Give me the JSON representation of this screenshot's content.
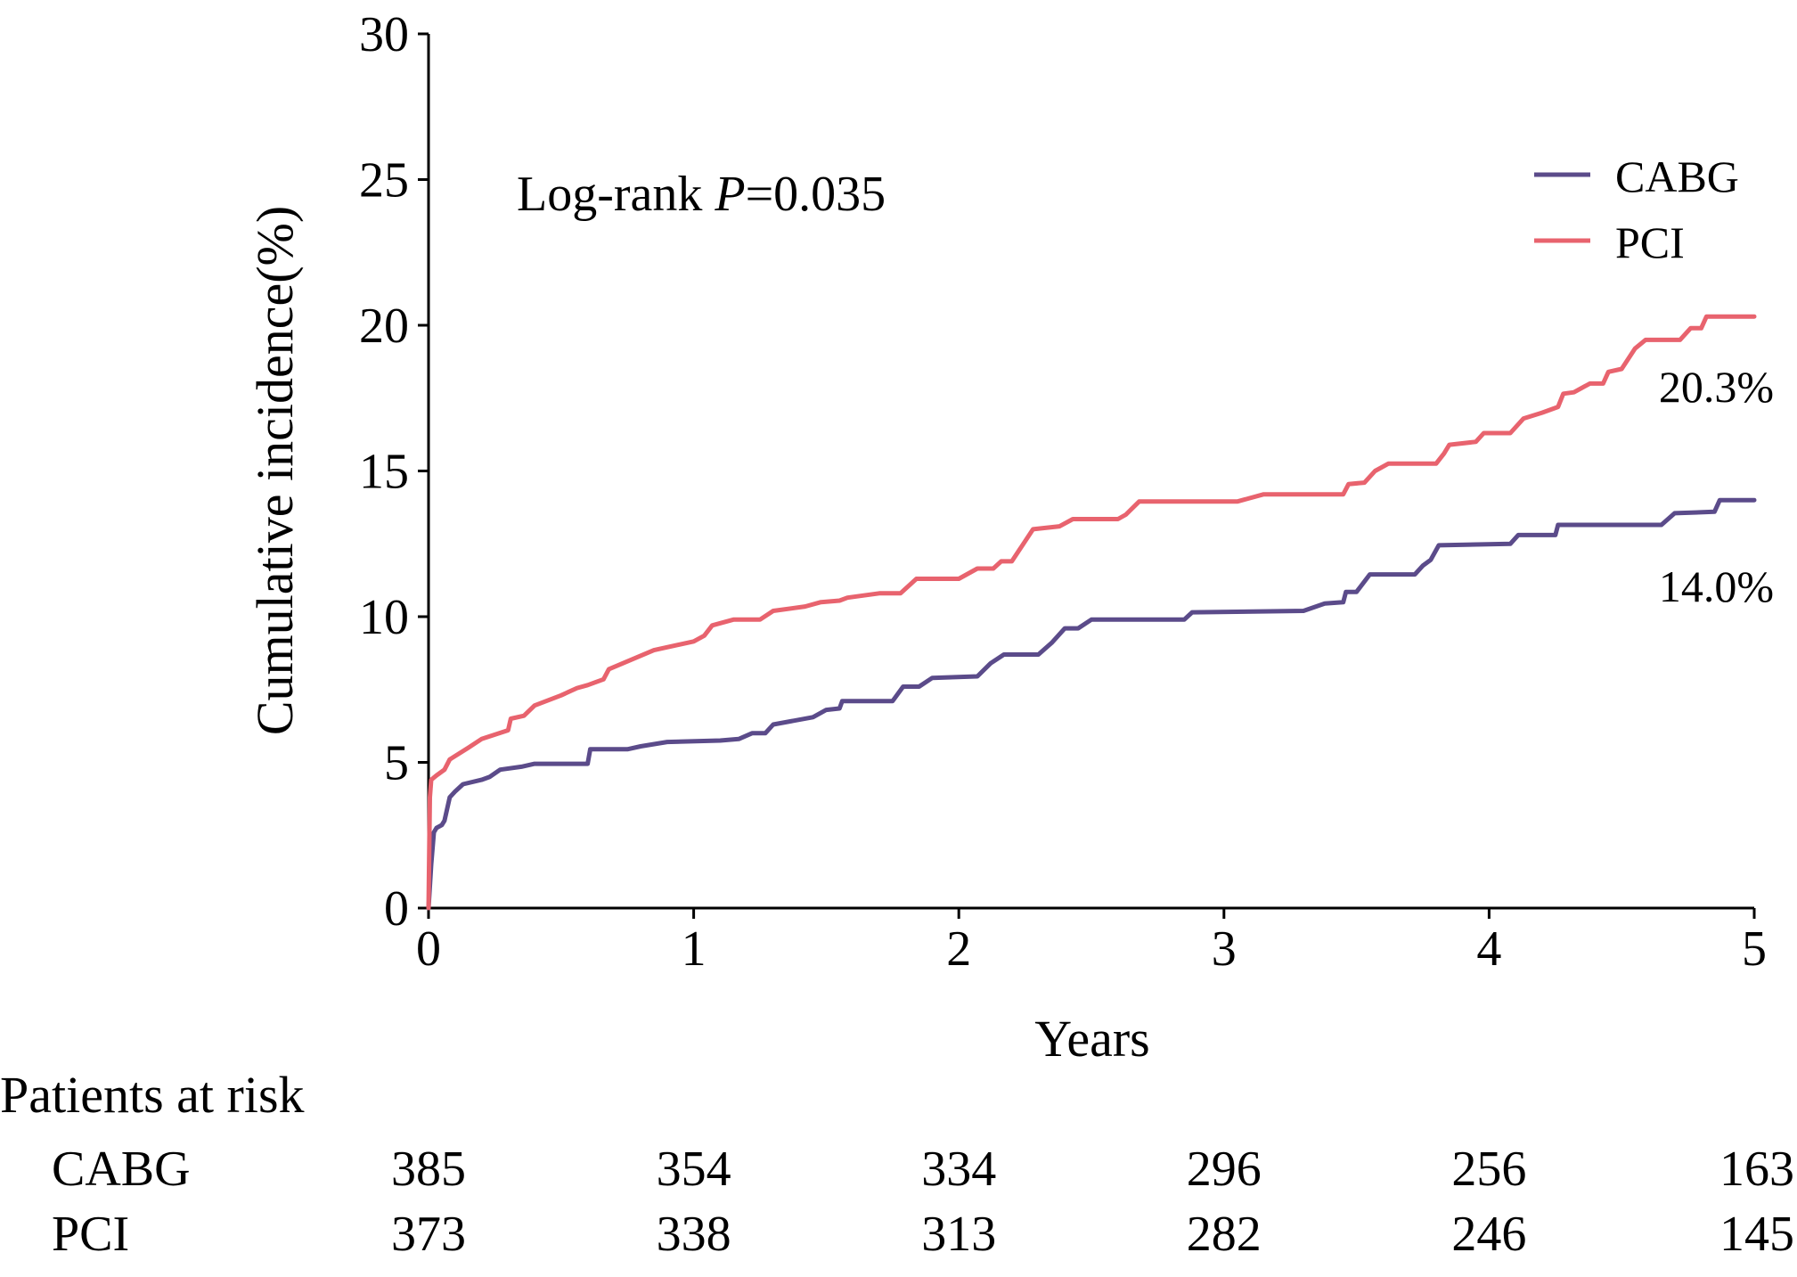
{
  "chart_data": {
    "type": "line",
    "xlabel": "Years",
    "ylabel": "Cumulative incidence(%)",
    "xlim": [
      0,
      5
    ],
    "ylim": [
      0,
      30
    ],
    "x_ticks": [
      0,
      1,
      2,
      3,
      4,
      5
    ],
    "y_ticks": [
      0,
      5,
      10,
      15,
      20,
      25,
      30
    ],
    "x_tick_labels": [
      "0",
      "1",
      "2",
      "3",
      "4",
      "5"
    ],
    "y_tick_labels": [
      "0",
      "5",
      "10",
      "15",
      "20",
      "25",
      "30"
    ],
    "grid": false,
    "legend_position": "top-right",
    "annotation": {
      "prefix": "Log-rank ",
      "italic": "P",
      "suffix": "=0.035"
    },
    "series": [
      {
        "name": "CABG",
        "color": "#5b4b8a",
        "end_label": "14.0%",
        "points": [
          [
            0,
            0
          ],
          [
            0.01,
            1.5
          ],
          [
            0.02,
            2.6
          ],
          [
            0.03,
            2.75
          ],
          [
            0.05,
            2.85
          ],
          [
            0.06,
            3.0
          ],
          [
            0.08,
            3.8
          ],
          [
            0.1,
            4.0
          ],
          [
            0.13,
            4.25
          ],
          [
            0.2,
            4.4
          ],
          [
            0.23,
            4.5
          ],
          [
            0.27,
            4.75
          ],
          [
            0.35,
            4.85
          ],
          [
            0.4,
            4.95
          ],
          [
            0.6,
            4.95
          ],
          [
            0.61,
            5.45
          ],
          [
            0.75,
            5.45
          ],
          [
            0.8,
            5.55
          ],
          [
            0.9,
            5.7
          ],
          [
            1.1,
            5.75
          ],
          [
            1.17,
            5.8
          ],
          [
            1.22,
            6.0
          ],
          [
            1.27,
            6.0
          ],
          [
            1.3,
            6.3
          ],
          [
            1.45,
            6.55
          ],
          [
            1.5,
            6.8
          ],
          [
            1.55,
            6.85
          ],
          [
            1.56,
            7.1
          ],
          [
            1.75,
            7.1
          ],
          [
            1.79,
            7.6
          ],
          [
            1.85,
            7.6
          ],
          [
            1.9,
            7.9
          ],
          [
            2.07,
            7.95
          ],
          [
            2.12,
            8.4
          ],
          [
            2.17,
            8.7
          ],
          [
            2.3,
            8.7
          ],
          [
            2.35,
            9.1
          ],
          [
            2.4,
            9.6
          ],
          [
            2.45,
            9.6
          ],
          [
            2.5,
            9.9
          ],
          [
            2.85,
            9.9
          ],
          [
            2.88,
            10.15
          ],
          [
            3.3,
            10.2
          ],
          [
            3.38,
            10.45
          ],
          [
            3.45,
            10.5
          ],
          [
            3.46,
            10.85
          ],
          [
            3.5,
            10.85
          ],
          [
            3.55,
            11.45
          ],
          [
            3.72,
            11.45
          ],
          [
            3.75,
            11.75
          ],
          [
            3.78,
            11.95
          ],
          [
            3.81,
            12.45
          ],
          [
            4.08,
            12.5
          ],
          [
            4.11,
            12.8
          ],
          [
            4.25,
            12.8
          ],
          [
            4.26,
            13.15
          ],
          [
            4.65,
            13.15
          ],
          [
            4.7,
            13.55
          ],
          [
            4.85,
            13.6
          ],
          [
            4.87,
            14.0
          ],
          [
            5.0,
            14.0
          ]
        ]
      },
      {
        "name": "PCI",
        "color": "#e8636e",
        "end_label": "20.3%",
        "points": [
          [
            0,
            0
          ],
          [
            0.005,
            3.8
          ],
          [
            0.01,
            4.4
          ],
          [
            0.03,
            4.55
          ],
          [
            0.06,
            4.75
          ],
          [
            0.08,
            5.1
          ],
          [
            0.15,
            5.5
          ],
          [
            0.2,
            5.8
          ],
          [
            0.3,
            6.1
          ],
          [
            0.31,
            6.5
          ],
          [
            0.36,
            6.6
          ],
          [
            0.4,
            6.95
          ],
          [
            0.5,
            7.3
          ],
          [
            0.56,
            7.55
          ],
          [
            0.6,
            7.65
          ],
          [
            0.66,
            7.85
          ],
          [
            0.68,
            8.2
          ],
          [
            0.85,
            8.85
          ],
          [
            1.0,
            9.15
          ],
          [
            1.04,
            9.35
          ],
          [
            1.07,
            9.7
          ],
          [
            1.15,
            9.9
          ],
          [
            1.25,
            9.9
          ],
          [
            1.3,
            10.2
          ],
          [
            1.42,
            10.35
          ],
          [
            1.48,
            10.5
          ],
          [
            1.55,
            10.55
          ],
          [
            1.58,
            10.65
          ],
          [
            1.7,
            10.8
          ],
          [
            1.78,
            10.8
          ],
          [
            1.84,
            11.3
          ],
          [
            2.0,
            11.3
          ],
          [
            2.07,
            11.65
          ],
          [
            2.13,
            11.65
          ],
          [
            2.16,
            11.9
          ],
          [
            2.2,
            11.9
          ],
          [
            2.28,
            13.0
          ],
          [
            2.38,
            13.1
          ],
          [
            2.43,
            13.35
          ],
          [
            2.6,
            13.35
          ],
          [
            2.63,
            13.5
          ],
          [
            2.68,
            13.95
          ],
          [
            3.05,
            13.95
          ],
          [
            3.15,
            14.2
          ],
          [
            3.45,
            14.2
          ],
          [
            3.47,
            14.55
          ],
          [
            3.53,
            14.6
          ],
          [
            3.57,
            15.0
          ],
          [
            3.62,
            15.25
          ],
          [
            3.8,
            15.25
          ],
          [
            3.83,
            15.6
          ],
          [
            3.85,
            15.9
          ],
          [
            3.95,
            16.0
          ],
          [
            3.98,
            16.3
          ],
          [
            4.08,
            16.3
          ],
          [
            4.13,
            16.8
          ],
          [
            4.2,
            17.0
          ],
          [
            4.26,
            17.2
          ],
          [
            4.28,
            17.65
          ],
          [
            4.32,
            17.7
          ],
          [
            4.38,
            18.0
          ],
          [
            4.43,
            18.0
          ],
          [
            4.45,
            18.4
          ],
          [
            4.5,
            18.5
          ],
          [
            4.55,
            19.2
          ],
          [
            4.59,
            19.5
          ],
          [
            4.72,
            19.5
          ],
          [
            4.76,
            19.9
          ],
          [
            4.8,
            19.9
          ],
          [
            4.82,
            20.3
          ],
          [
            5.0,
            20.3
          ]
        ]
      }
    ],
    "risk_table": {
      "title": "Patients at risk",
      "rows": [
        {
          "label": "CABG",
          "values": [
            "385",
            "354",
            "334",
            "296",
            "256",
            "163"
          ]
        },
        {
          "label": "PCI",
          "values": [
            "373",
            "338",
            "313",
            "282",
            "246",
            "145"
          ]
        }
      ]
    }
  }
}
